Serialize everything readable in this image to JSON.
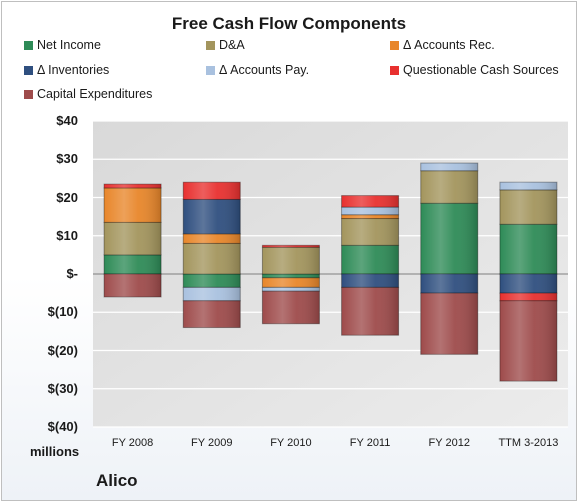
{
  "chart_data": {
    "type": "bar",
    "stacked": true,
    "title": "Free Cash Flow Components",
    "unit_label": "millions",
    "company": "Alico",
    "categories": [
      "FY 2008",
      "FY 2009",
      "FY 2010",
      "FY 2011",
      "FY 2012",
      "TTM 3-2013"
    ],
    "ylim": [
      -40,
      40
    ],
    "yticks": [
      40,
      30,
      20,
      10,
      0,
      -10,
      -20,
      -30,
      -40
    ],
    "ytick_labels": [
      "$40",
      "$30",
      "$20",
      "$10",
      "$-",
      "$(10)",
      "$(20)",
      "$(30)",
      "$(40)"
    ],
    "grid": true,
    "legend_position": "top",
    "series": [
      {
        "name": "Net Income",
        "color": "#2e8b57",
        "values": [
          5,
          -3.5,
          -1,
          7.5,
          18.5,
          13
        ]
      },
      {
        "name": "D&A",
        "color": "#a3955d",
        "values": [
          8.5,
          8,
          7,
          7,
          8.5,
          9
        ]
      },
      {
        "name": "Δ Accounts Rec.",
        "color": "#e8862a",
        "values": [
          9,
          2.5,
          -2.5,
          1,
          0,
          0
        ]
      },
      {
        "name": "Δ Inventories",
        "color": "#2f4f7f",
        "values": [
          0,
          9,
          0,
          -3.5,
          -5,
          -5
        ]
      },
      {
        "name": "Δ Accounts Pay.",
        "color": "#a9c1df",
        "values": [
          0,
          -3.5,
          -1,
          2,
          2,
          2
        ]
      },
      {
        "name": "Questionable Cash Sources",
        "color": "#e8302f",
        "values": [
          1,
          4.5,
          0.5,
          3,
          0,
          -2
        ]
      },
      {
        "name": "Capital Expenditures",
        "color": "#9e4b4b",
        "values": [
          -6,
          -7,
          -8.5,
          -12.5,
          -16,
          -21
        ]
      }
    ]
  }
}
